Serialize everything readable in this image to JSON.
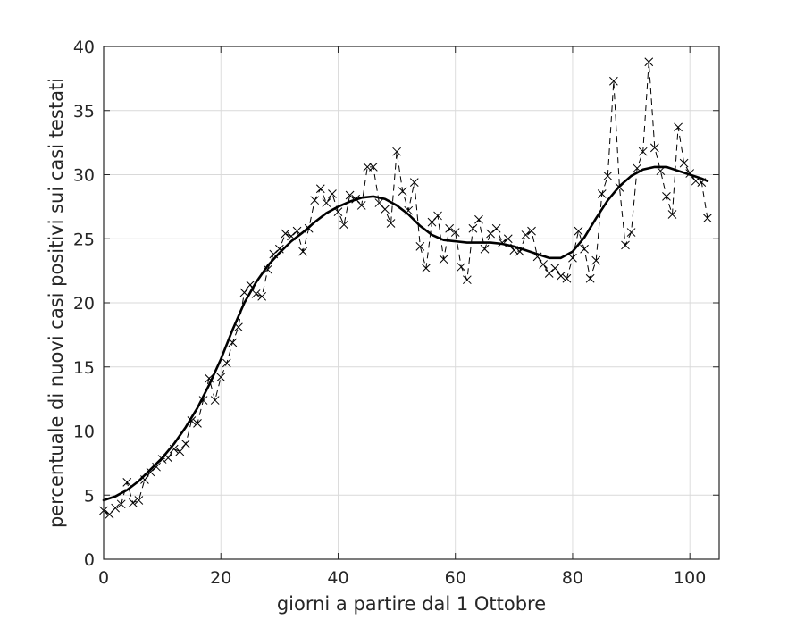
{
  "chart_data": {
    "type": "line",
    "xlabel": "giorni a partire dal 1 Ottobre",
    "ylabel": "percentuale di nuovi casi positivi sui casi testati",
    "xlim": [
      0,
      105
    ],
    "ylim": [
      0,
      40
    ],
    "xticks": [
      0,
      20,
      40,
      60,
      80,
      100
    ],
    "yticks": [
      0,
      5,
      10,
      15,
      20,
      25,
      30,
      35,
      40
    ],
    "grid": true,
    "series": [
      {
        "style": "dashed line with x markers",
        "color": "#000000",
        "x": [
          0,
          1,
          2,
          3,
          4,
          5,
          6,
          7,
          8,
          9,
          10,
          11,
          12,
          13,
          14,
          15,
          16,
          17,
          18,
          19,
          20,
          21,
          22,
          23,
          24,
          25,
          26,
          27,
          28,
          29,
          30,
          31,
          32,
          33,
          34,
          35,
          36,
          37,
          38,
          39,
          40,
          41,
          42,
          43,
          44,
          45,
          46,
          47,
          48,
          49,
          50,
          51,
          52,
          53,
          54,
          55,
          56,
          57,
          58,
          59,
          60,
          61,
          62,
          63,
          64,
          65,
          66,
          67,
          68,
          69,
          70,
          71,
          72,
          73,
          74,
          75,
          76,
          77,
          78,
          79,
          80,
          81,
          82,
          83,
          84,
          85,
          86,
          87,
          88,
          89,
          90,
          91,
          92,
          93,
          94,
          95,
          96,
          97,
          98,
          99,
          100,
          101,
          102,
          103
        ],
        "y": [
          3.8,
          3.5,
          4.0,
          4.3,
          6.0,
          4.4,
          4.6,
          6.2,
          6.8,
          7.2,
          7.8,
          7.9,
          8.6,
          8.4,
          9.0,
          10.8,
          10.6,
          12.4,
          14.1,
          12.4,
          14.2,
          15.3,
          16.9,
          18.1,
          20.8,
          21.4,
          20.7,
          20.5,
          22.6,
          23.8,
          24.2,
          25.4,
          25.2,
          25.6,
          24.0,
          25.8,
          28.0,
          28.9,
          27.8,
          28.5,
          27.1,
          26.1,
          28.4,
          28.1,
          27.6,
          30.6,
          30.6,
          27.8,
          27.3,
          26.2,
          31.8,
          28.7,
          27.2,
          29.4,
          24.4,
          22.7,
          26.3,
          26.8,
          23.4,
          25.8,
          25.5,
          22.8,
          21.8,
          25.8,
          26.5,
          24.2,
          25.4,
          25.8,
          24.7,
          25.0,
          24.1,
          24.0,
          25.3,
          25.6,
          23.6,
          23.0,
          22.3,
          22.7,
          22.1,
          21.9,
          23.5,
          25.6,
          24.2,
          21.9,
          23.3,
          28.5,
          29.9,
          37.3,
          29.0,
          24.5,
          25.5,
          30.5,
          31.8,
          38.8,
          32.1,
          30.3,
          28.3,
          26.9,
          33.7,
          30.9,
          30.1,
          29.5,
          29.4,
          26.6
        ]
      },
      {
        "style": "smooth solid line",
        "color": "#000000",
        "x": [
          0,
          2,
          4,
          6,
          8,
          10,
          12,
          14,
          16,
          18,
          20,
          22,
          24,
          26,
          28,
          30,
          32,
          34,
          36,
          38,
          40,
          42,
          44,
          46,
          48,
          50,
          52,
          54,
          56,
          58,
          60,
          62,
          64,
          66,
          68,
          70,
          72,
          74,
          76,
          78,
          80,
          82,
          84,
          86,
          88,
          90,
          92,
          94,
          96,
          98,
          100,
          102,
          103
        ],
        "y": [
          4.6,
          4.9,
          5.4,
          6.1,
          7.0,
          7.9,
          9.0,
          10.3,
          11.8,
          13.6,
          15.6,
          17.9,
          20.0,
          21.6,
          22.9,
          23.9,
          24.8,
          25.5,
          26.3,
          27.0,
          27.5,
          27.9,
          28.2,
          28.3,
          28.1,
          27.6,
          26.9,
          26.0,
          25.3,
          24.9,
          24.8,
          24.7,
          24.7,
          24.7,
          24.6,
          24.4,
          24.1,
          23.8,
          23.5,
          23.5,
          24.0,
          25.1,
          26.6,
          28.0,
          29.1,
          29.9,
          30.4,
          30.6,
          30.6,
          30.3,
          30.0,
          29.7,
          29.5
        ]
      }
    ]
  }
}
